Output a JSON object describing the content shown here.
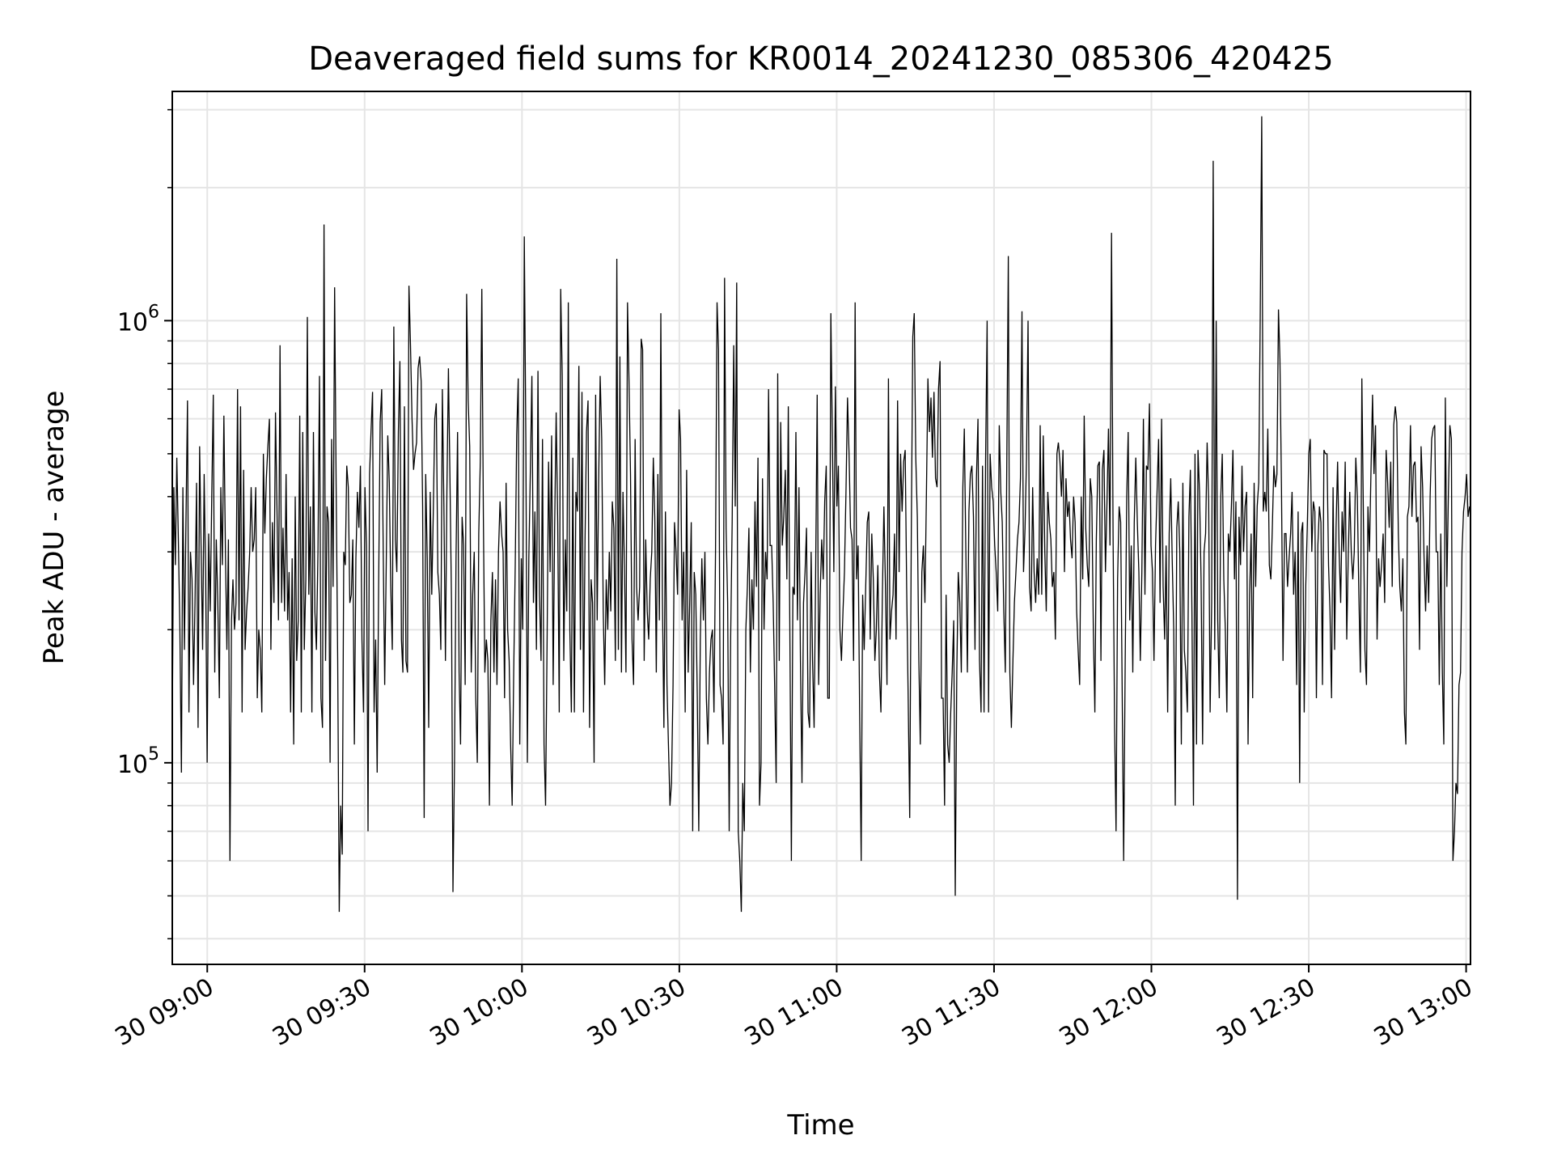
{
  "chart_data": {
    "type": "line",
    "title": "Deaveraged field sums for KR0014_20241230_085306_420425",
    "xlabel": "Time",
    "ylabel": "Peak ADU - average",
    "yscale": "log",
    "ylim": [
      35000,
      3300000
    ],
    "xlim": [
      "2024-12-30 08:53:20",
      "2024-12-30 13:00:50"
    ],
    "x_tick_labels": [
      "30 09:00",
      "30 09:30",
      "30 10:00",
      "30 10:30",
      "30 11:00",
      "30 11:30",
      "30 12:00",
      "30 12:30",
      "30 13:00"
    ],
    "y_tick_labels": [
      {
        "base": "10",
        "exp": "5"
      },
      {
        "base": "10",
        "exp": "6"
      }
    ],
    "grid": true,
    "line_color": "#000000",
    "grid_color": "#e5e5e5",
    "series": [
      {
        "start_time": "2024-12-30 08:53:20",
        "end_time": "2024-12-30 13:00:40",
        "values": [
          120000,
          420000,
          280000,
          490000,
          320000,
          200000,
          95000,
          420000,
          180000,
          350000,
          660000,
          130000,
          300000,
          260000,
          150000,
          230000,
          430000,
          120000,
          520000,
          310000,
          180000,
          450000,
          260000,
          100000,
          330000,
          220000,
          400000,
          680000,
          160000,
          320000,
          230000,
          140000,
          420000,
          280000,
          610000,
          300000,
          180000,
          320000,
          60000,
          210000,
          260000,
          200000,
          230000,
          700000,
          210000,
          640000,
          130000,
          460000,
          180000,
          220000,
          250000,
          300000,
          420000,
          300000,
          320000,
          420000,
          140000,
          200000,
          180000,
          130000,
          500000,
          330000,
          440000,
          520000,
          600000,
          180000,
          350000,
          230000,
          620000,
          380000,
          210000,
          880000,
          230000,
          340000,
          220000,
          450000,
          210000,
          270000,
          130000,
          290000,
          110000,
          400000,
          170000,
          210000,
          610000,
          130000,
          560000,
          180000,
          260000,
          1020000,
          240000,
          380000,
          130000,
          560000,
          220000,
          180000,
          300000,
          750000,
          140000,
          120000,
          1650000,
          170000,
          380000,
          350000,
          100000,
          540000,
          250000,
          1190000,
          420000,
          170000,
          46000,
          80000,
          62000,
          300000,
          280000,
          470000,
          420000,
          230000,
          240000,
          320000,
          110000,
          290000,
          410000,
          340000,
          470000,
          190000,
          130000,
          420000,
          310000,
          70000,
          450000,
          560000,
          690000,
          130000,
          190000,
          95000,
          250000,
          590000,
          700000,
          300000,
          150000,
          280000,
          550000,
          430000,
          250000,
          180000,
          970000,
          320000,
          270000,
          560000,
          810000,
          190000,
          160000,
          640000,
          170000,
          160000,
          1200000,
          880000,
          600000,
          460000,
          500000,
          530000,
          780000,
          830000,
          730000,
          380000,
          75000,
          450000,
          290000,
          120000,
          410000,
          240000,
          370000,
          600000,
          650000,
          270000,
          240000,
          180000,
          700000,
          380000,
          170000,
          410000,
          780000,
          440000,
          230000,
          51000,
          100000,
          290000,
          560000,
          160000,
          110000,
          360000,
          310000,
          150000,
          1150000,
          660000,
          520000,
          160000,
          240000,
          300000,
          140000,
          100000,
          330000,
          480000,
          1180000,
          360000,
          160000,
          190000,
          170000,
          80000,
          210000,
          270000,
          160000,
          260000,
          150000,
          300000,
          390000,
          330000,
          300000,
          140000,
          430000,
          200000,
          170000,
          110000,
          80000,
          160000,
          280000,
          550000,
          740000,
          110000,
          290000,
          200000,
          1550000,
          540000,
          100000,
          290000,
          460000,
          750000,
          230000,
          370000,
          180000,
          770000,
          240000,
          170000,
          540000,
          110000,
          80000,
          190000,
          480000,
          270000,
          550000,
          150000,
          340000,
          620000,
          350000,
          130000,
          1180000,
          750000,
          170000,
          320000,
          220000,
          1100000,
          200000,
          130000,
          490000,
          130000,
          410000,
          370000,
          790000,
          180000,
          690000,
          130000,
          320000,
          560000,
          660000,
          120000,
          260000,
          230000,
          100000,
          680000,
          210000,
          430000,
          750000,
          540000,
          220000,
          150000,
          260000,
          200000,
          300000,
          220000,
          390000,
          340000,
          170000,
          1380000,
          180000,
          830000,
          160000,
          410000,
          280000,
          160000,
          1100000,
          720000,
          450000,
          190000,
          150000,
          540000,
          250000,
          210000,
          250000,
          910000,
          860000,
          170000,
          320000,
          220000,
          190000,
          260000,
          300000,
          490000,
          360000,
          160000,
          450000,
          210000,
          1040000,
          240000,
          120000,
          370000,
          150000,
          110000,
          80000,
          90000,
          150000,
          350000,
          300000,
          240000,
          630000,
          540000,
          210000,
          300000,
          130000,
          460000,
          160000,
          230000,
          350000,
          70000,
          270000,
          240000,
          140000,
          70000,
          190000,
          290000,
          210000,
          300000,
          140000,
          110000,
          160000,
          190000,
          200000,
          130000,
          300000,
          1100000,
          860000,
          150000,
          140000,
          110000,
          1250000,
          340000,
          230000,
          70000,
          190000,
          350000,
          880000,
          380000,
          1220000,
          70000,
          60000,
          46000,
          90000,
          70000,
          200000,
          250000,
          340000,
          160000,
          260000,
          200000,
          390000,
          250000,
          490000,
          80000,
          100000,
          440000,
          200000,
          300000,
          260000,
          700000,
          310000,
          310000,
          230000,
          150000,
          90000,
          760000,
          170000,
          590000,
          310000,
          360000,
          460000,
          260000,
          640000,
          200000,
          60000,
          250000,
          240000,
          560000,
          210000,
          420000,
          170000,
          90000,
          230000,
          270000,
          340000,
          130000,
          120000,
          300000,
          170000,
          120000,
          270000,
          680000,
          150000,
          240000,
          320000,
          260000,
          390000,
          470000,
          140000,
          140000,
          1040000,
          560000,
          270000,
          710000,
          380000,
          470000,
          200000,
          170000,
          220000,
          270000,
          410000,
          670000,
          500000,
          340000,
          320000,
          170000,
          1100000,
          260000,
          310000,
          130000,
          60000,
          240000,
          180000,
          250000,
          350000,
          370000,
          190000,
          330000,
          260000,
          170000,
          200000,
          280000,
          160000,
          130000,
          240000,
          380000,
          250000,
          150000,
          740000,
          190000,
          220000,
          240000,
          330000,
          190000,
          660000,
          270000,
          500000,
          370000,
          480000,
          510000,
          250000,
          140000,
          75000,
          320000,
          920000,
          1040000,
          490000,
          360000,
          170000,
          110000,
          270000,
          310000,
          230000,
          400000,
          740000,
          560000,
          670000,
          490000,
          690000,
          440000,
          420000,
          700000,
          810000,
          140000,
          140000,
          80000,
          240000,
          110000,
          100000,
          130000,
          160000,
          210000,
          50000,
          160000,
          270000,
          230000,
          160000,
          420000,
          570000,
          300000,
          160000,
          370000,
          450000,
          470000,
          360000,
          180000,
          440000,
          600000,
          170000,
          130000,
          470000,
          130000,
          480000,
          1000000,
          130000,
          500000,
          420000,
          390000,
          310000,
          270000,
          220000,
          580000,
          410000,
          350000,
          220000,
          160000,
          500000,
          1400000,
          160000,
          120000,
          170000,
          230000,
          270000,
          320000,
          350000,
          440000,
          1050000,
          270000,
          340000,
          490000,
          1000000,
          250000,
          220000,
          420000,
          270000,
          230000,
          290000,
          240000,
          580000,
          240000,
          550000,
          300000,
          220000,
          410000,
          350000,
          320000,
          250000,
          270000,
          190000,
          500000,
          530000,
          480000,
          400000,
          510000,
          270000,
          440000,
          360000,
          390000,
          320000,
          290000,
          400000,
          350000,
          220000,
          180000,
          150000,
          400000,
          260000,
          610000,
          340000,
          280000,
          250000,
          440000,
          400000,
          200000,
          130000,
          320000,
          470000,
          480000,
          170000,
          460000,
          510000,
          270000,
          390000,
          570000,
          310000,
          1580000,
          330000,
          120000,
          70000,
          260000,
          380000,
          350000,
          150000,
          60000,
          170000,
          400000,
          560000,
          210000,
          310000,
          160000,
          350000,
          490000,
          350000,
          270000,
          170000,
          270000,
          600000,
          240000,
          470000,
          460000,
          650000,
          310000,
          270000,
          170000,
          310000,
          410000,
          540000,
          230000,
          600000,
          250000,
          190000,
          310000,
          130000,
          330000,
          440000,
          290000,
          200000,
          80000,
          340000,
          390000,
          300000,
          110000,
          430000,
          180000,
          160000,
          130000,
          360000,
          460000,
          220000,
          80000,
          500000,
          110000,
          510000,
          410000,
          260000,
          110000,
          300000,
          330000,
          530000,
          390000,
          130000,
          230000,
          2300000,
          180000,
          1000000,
          210000,
          140000,
          400000,
          500000,
          260000,
          200000,
          130000,
          330000,
          300000,
          380000,
          510000,
          260000,
          390000,
          49000,
          360000,
          280000,
          470000,
          300000,
          380000,
          410000,
          110000,
          240000,
          330000,
          140000,
          430000,
          250000,
          380000,
          430000,
          1000000,
          2900000,
          370000,
          410000,
          370000,
          570000,
          280000,
          260000,
          340000,
          470000,
          420000,
          450000,
          1060000,
          820000,
          420000,
          170000,
          330000,
          330000,
          250000,
          290000,
          330000,
          410000,
          240000,
          300000,
          150000,
          370000,
          90000,
          330000,
          350000,
          130000,
          250000,
          340000,
          500000,
          540000,
          300000,
          390000,
          370000,
          140000,
          310000,
          380000,
          350000,
          150000,
          510000,
          500000,
          500000,
          280000,
          220000,
          140000,
          420000,
          180000,
          340000,
          480000,
          300000,
          230000,
          370000,
          300000,
          480000,
          190000,
          290000,
          410000,
          300000,
          260000,
          300000,
          490000,
          400000,
          240000,
          160000,
          740000,
          360000,
          180000,
          150000,
          380000,
          300000,
          460000,
          680000,
          450000,
          580000,
          190000,
          290000,
          250000,
          280000,
          330000,
          230000,
          510000,
          430000,
          340000,
          480000,
          250000,
          580000,
          640000,
          590000,
          330000,
          250000,
          220000,
          290000,
          130000,
          110000,
          360000,
          380000,
          580000,
          360000,
          470000,
          480000,
          350000,
          360000,
          180000,
          520000,
          420000,
          290000,
          220000,
          310000,
          230000,
          400000,
          540000,
          570000,
          580000,
          300000,
          300000,
          150000,
          330000,
          160000,
          110000,
          670000,
          250000,
          410000,
          580000,
          540000,
          60000,
          70000,
          90000,
          85000,
          150000,
          160000,
          300000,
          370000,
          400000,
          450000,
          360000,
          380000
        ]
      }
    ]
  }
}
